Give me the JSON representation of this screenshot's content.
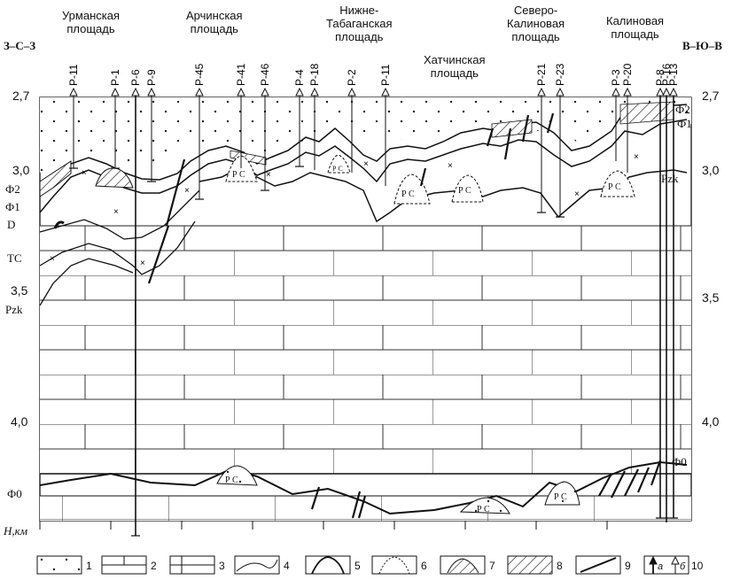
{
  "areas": [
    "Урманская\nплощадь",
    "Арчинская\nплощадь",
    "Нижне-\nТабаганская\nплощадь",
    "Хатчинская\nплощадь",
    "Северо-\nКалиновая\nплощадь",
    "Калиновая\nплощадь"
  ],
  "directions": {
    "left": "З–С–З",
    "right": "В–Ю–В"
  },
  "depth": {
    "unit_label": "H,км",
    "left_ticks": [
      "2,7",
      "3,0",
      "3,5",
      "4,0"
    ],
    "right_ticks": [
      "2,7",
      "3,0",
      "3,5",
      "4,0"
    ]
  },
  "wells": [
    "Р-11",
    "Р-1",
    "Р-6",
    "Р-9",
    "Р-45",
    "Р-41",
    "Р-46",
    "Р-4",
    "Р-18",
    "Р-2",
    "Р-11",
    "Р-21",
    "Р-23",
    "Р-3",
    "Р-20",
    "Р-8",
    "Р-16",
    "Р-13"
  ],
  "left_units": [
    "Ф2",
    "Ф1",
    "D",
    "TC",
    "Pzk",
    "Ф0"
  ],
  "right_units": [
    "Ф2",
    "Ф1",
    "Pzk",
    "Ф0"
  ],
  "feature_labels": {
    "reef": "Р С"
  },
  "legend": [
    "1",
    "2",
    "3",
    "4",
    "5",
    "6",
    "7",
    "8",
    "9",
    "10"
  ],
  "legend_sub": {
    "a": "а",
    "b": "б"
  }
}
